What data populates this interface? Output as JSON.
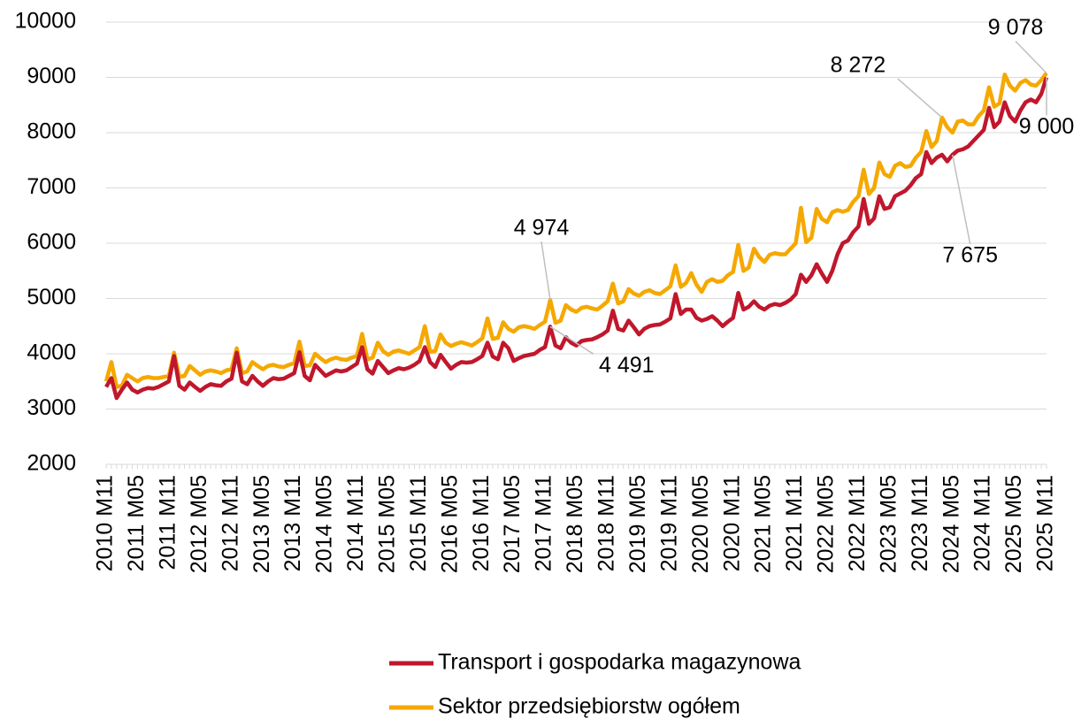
{
  "chart_data": {
    "type": "line",
    "categories": [
      "2010 M11",
      null,
      null,
      null,
      null,
      null,
      "2011 M05",
      null,
      null,
      null,
      null,
      null,
      "2011 M11",
      null,
      null,
      null,
      null,
      null,
      "2012 M05",
      null,
      null,
      null,
      null,
      null,
      "2012 M11",
      null,
      null,
      null,
      null,
      null,
      "2013 M05",
      null,
      null,
      null,
      null,
      null,
      "2013 M11",
      null,
      null,
      null,
      null,
      null,
      "2014 M05",
      null,
      null,
      null,
      null,
      null,
      "2014 M11",
      null,
      null,
      null,
      null,
      null,
      "2015 M05",
      null,
      null,
      null,
      null,
      null,
      "2015 M11",
      null,
      null,
      null,
      null,
      null,
      "2016 M05",
      null,
      null,
      null,
      null,
      null,
      "2016 M11",
      null,
      null,
      null,
      null,
      null,
      "2017 M05",
      null,
      null,
      null,
      null,
      null,
      "2017 M11",
      null,
      null,
      null,
      null,
      null,
      "2018 M05",
      null,
      null,
      null,
      null,
      null,
      "2018 M11",
      null,
      null,
      null,
      null,
      null,
      "2019 M05",
      null,
      null,
      null,
      null,
      null,
      "2019 M11",
      null,
      null,
      null,
      null,
      null,
      "2020 M05",
      null,
      null,
      null,
      null,
      null,
      "2020 M11",
      null,
      null,
      null,
      null,
      null,
      "2021 M05",
      null,
      null,
      null,
      null,
      null,
      "2021 M11",
      null,
      null,
      null,
      null,
      null,
      "2022 M05",
      null,
      null,
      null,
      null,
      null,
      "2022 M11",
      null,
      null,
      null,
      null,
      null,
      "2023 M05",
      null,
      null,
      null,
      null,
      null,
      "2023 M11",
      null,
      null,
      null,
      null,
      null,
      "2024 M05",
      null,
      null,
      null,
      null,
      null,
      "2024 M11",
      null,
      null,
      null,
      null,
      null,
      "2025 M05",
      null,
      null,
      null,
      null,
      null,
      "2025 M11"
    ],
    "series": [
      {
        "name": "Transport i gospodarka magazynowa",
        "color": "#c0172c",
        "values": [
          3400,
          3560,
          3200,
          3350,
          3480,
          3350,
          3300,
          3350,
          3380,
          3370,
          3400,
          3450,
          3500,
          3960,
          3420,
          3350,
          3480,
          3400,
          3330,
          3400,
          3450,
          3430,
          3420,
          3500,
          3550,
          4020,
          3500,
          3450,
          3600,
          3500,
          3420,
          3500,
          3560,
          3540,
          3550,
          3600,
          3650,
          4030,
          3600,
          3520,
          3800,
          3700,
          3600,
          3650,
          3700,
          3680,
          3700,
          3760,
          3820,
          4120,
          3720,
          3640,
          3870,
          3760,
          3650,
          3700,
          3740,
          3720,
          3750,
          3800,
          3870,
          4120,
          3850,
          3760,
          3980,
          3850,
          3730,
          3800,
          3850,
          3840,
          3850,
          3900,
          3960,
          4200,
          3950,
          3900,
          4200,
          4100,
          3870,
          3920,
          3960,
          3980,
          4000,
          4070,
          4120,
          4491,
          4150,
          4100,
          4300,
          4200,
          4150,
          4230,
          4250,
          4260,
          4300,
          4350,
          4420,
          4780,
          4450,
          4420,
          4600,
          4480,
          4350,
          4450,
          4500,
          4520,
          4530,
          4580,
          4640,
          5080,
          4720,
          4800,
          4800,
          4650,
          4600,
          4630,
          4680,
          4600,
          4500,
          4580,
          4650,
          5100,
          4800,
          4850,
          4950,
          4850,
          4800,
          4870,
          4900,
          4880,
          4920,
          4980,
          5080,
          5430,
          5300,
          5420,
          5620,
          5450,
          5300,
          5500,
          5800,
          6000,
          6050,
          6200,
          6300,
          6800,
          6350,
          6450,
          6850,
          6620,
          6650,
          6850,
          6900,
          6950,
          7050,
          7180,
          7250,
          7650,
          7450,
          7550,
          7600,
          7480,
          7600,
          7675,
          7700,
          7750,
          7850,
          7950,
          8050,
          8450,
          8100,
          8200,
          8550,
          8300,
          8200,
          8400,
          8550,
          8600,
          8550,
          8700,
          9000
        ],
        "value_labels": {
          "85": "4 491",
          "162": "7 675",
          "180": "9 000"
        }
      },
      {
        "name": "Sektor przedsiębiorstw ogółem",
        "color": "#f5a800",
        "values": [
          3500,
          3850,
          3400,
          3420,
          3620,
          3560,
          3500,
          3560,
          3580,
          3560,
          3560,
          3580,
          3600,
          4020,
          3580,
          3600,
          3780,
          3700,
          3620,
          3680,
          3700,
          3680,
          3650,
          3700,
          3720,
          4100,
          3650,
          3680,
          3850,
          3780,
          3720,
          3780,
          3800,
          3770,
          3760,
          3800,
          3830,
          4220,
          3780,
          3790,
          4000,
          3920,
          3850,
          3900,
          3930,
          3900,
          3890,
          3930,
          3960,
          4360,
          3900,
          3930,
          4200,
          4050,
          3980,
          4040,
          4060,
          4030,
          4000,
          4060,
          4120,
          4500,
          4040,
          4050,
          4350,
          4200,
          4140,
          4180,
          4210,
          4180,
          4150,
          4210,
          4280,
          4640,
          4270,
          4290,
          4570,
          4450,
          4400,
          4480,
          4500,
          4480,
          4450,
          4520,
          4580,
          4974,
          4560,
          4600,
          4880,
          4800,
          4760,
          4830,
          4850,
          4820,
          4800,
          4870,
          4950,
          5270,
          4910,
          4950,
          5170,
          5090,
          5050,
          5120,
          5150,
          5100,
          5080,
          5150,
          5220,
          5600,
          5210,
          5280,
          5460,
          5250,
          5120,
          5300,
          5350,
          5300,
          5320,
          5420,
          5480,
          5970,
          5500,
          5560,
          5900,
          5750,
          5660,
          5790,
          5820,
          5800,
          5800,
          5900,
          6000,
          6640,
          6020,
          6100,
          6620,
          6440,
          6380,
          6560,
          6600,
          6570,
          6600,
          6750,
          6850,
          7330,
          6890,
          7000,
          7460,
          7250,
          7200,
          7400,
          7450,
          7380,
          7400,
          7550,
          7650,
          8030,
          7740,
          7850,
          8272,
          8100,
          8000,
          8200,
          8220,
          8150,
          8150,
          8300,
          8400,
          8820,
          8470,
          8530,
          9050,
          8850,
          8760,
          8900,
          8950,
          8870,
          8850,
          8950,
          9078
        ],
        "value_labels": {
          "85": "4 974",
          "160": "8 272",
          "180": "9 078"
        }
      }
    ],
    "ylim": [
      2000,
      10000
    ],
    "yticks": [
      2000,
      3000,
      4000,
      5000,
      6000,
      7000,
      8000,
      9000,
      10000
    ],
    "grid": true,
    "legend": "bottom"
  }
}
